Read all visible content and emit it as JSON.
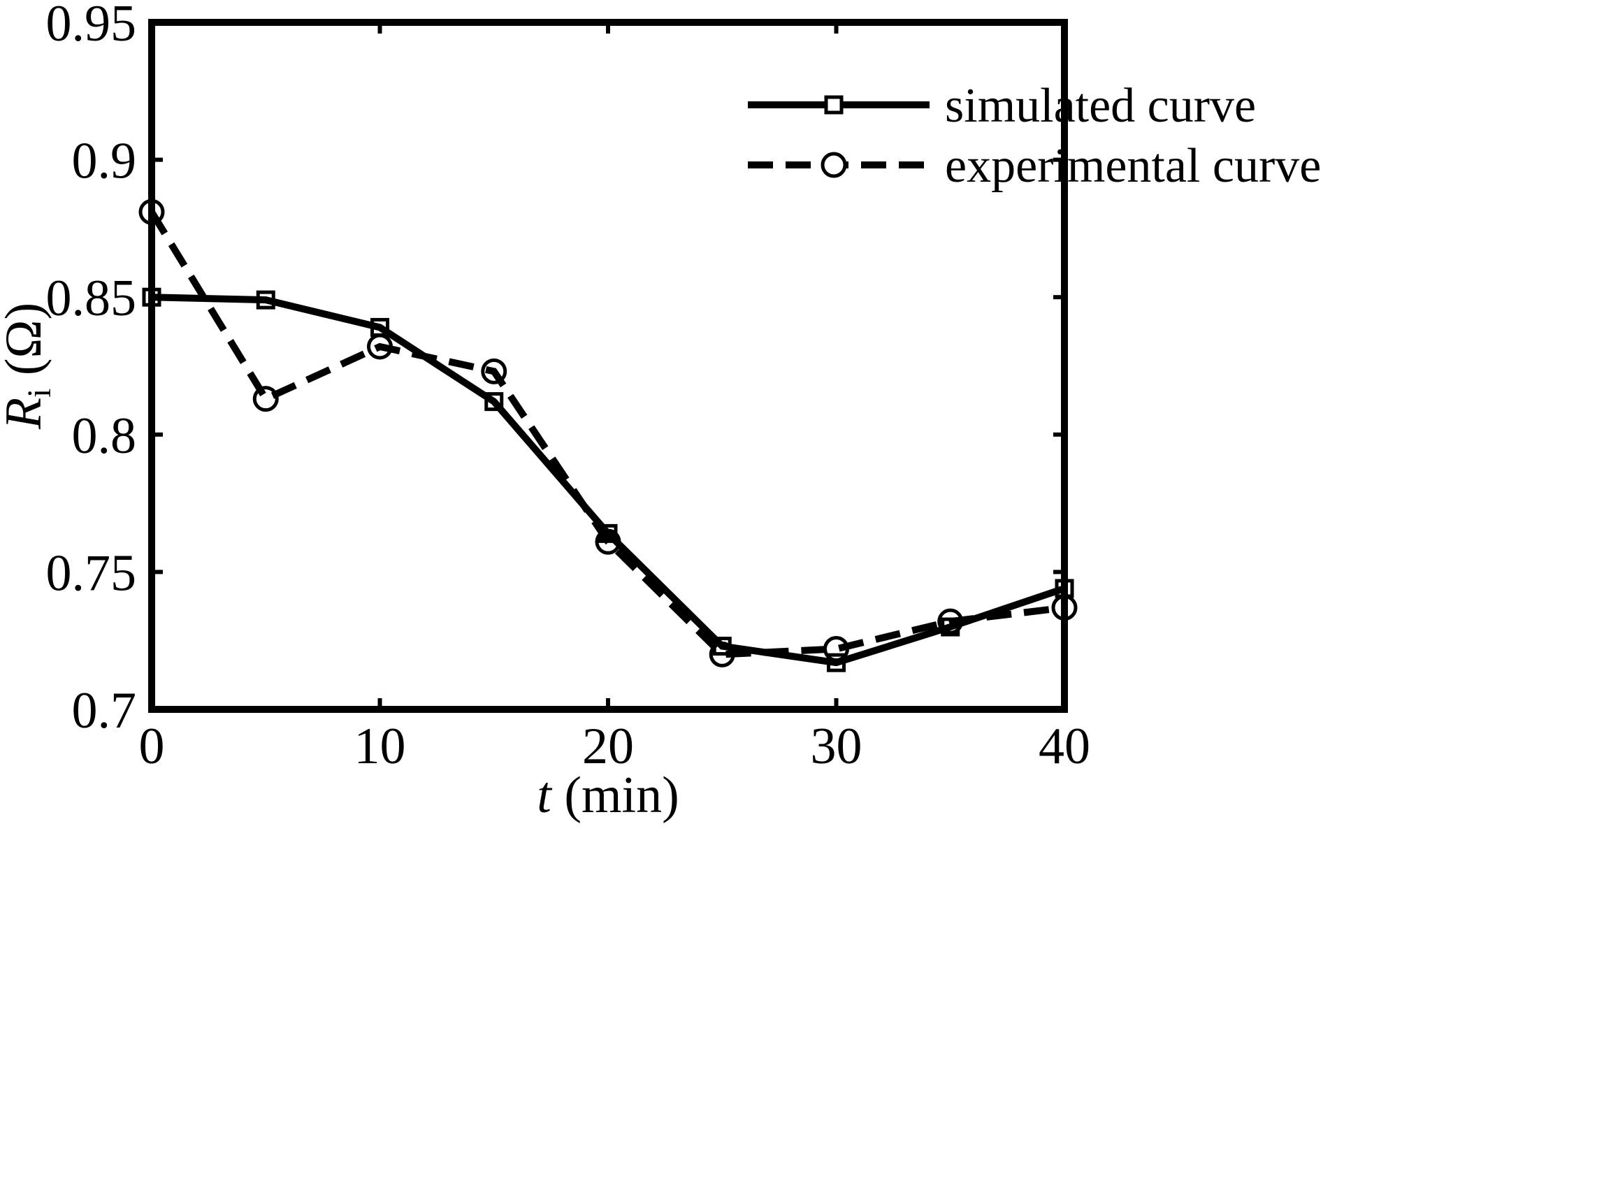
{
  "chart_data": {
    "type": "line",
    "x": [
      0,
      5,
      10,
      15,
      20,
      25,
      30,
      35,
      40
    ],
    "series": [
      {
        "name": "simulated curve",
        "style": "solid",
        "marker": "square",
        "values": [
          0.85,
          0.849,
          0.839,
          0.812,
          0.764,
          0.723,
          0.717,
          0.73,
          0.744
        ]
      },
      {
        "name": "experimental curve",
        "style": "dashed",
        "marker": "circle",
        "values": [
          0.881,
          0.813,
          0.832,
          0.823,
          0.761,
          0.72,
          0.722,
          0.732,
          0.737
        ]
      }
    ],
    "xlabel": {
      "italic": "t",
      "text": " (min)"
    },
    "ylabel": {
      "italic": "R",
      "subscript": "i",
      "text": " (Ω)"
    },
    "xlim": [
      0,
      40
    ],
    "ylim": [
      0.7,
      0.95
    ],
    "xticks": [
      0,
      10,
      20,
      30,
      40
    ],
    "yticks": [
      0.7,
      0.75,
      0.8,
      0.85,
      0.9,
      0.95
    ],
    "xtick_labels": [
      "0",
      "10",
      "20",
      "30",
      "40"
    ],
    "ytick_labels": [
      "0.7",
      "0.75",
      "0.8",
      "0.85",
      "0.9",
      "0.95"
    ],
    "grid": false,
    "legend_position": "top-right",
    "colors": {
      "line": "#000000",
      "background": "#ffffff"
    }
  }
}
